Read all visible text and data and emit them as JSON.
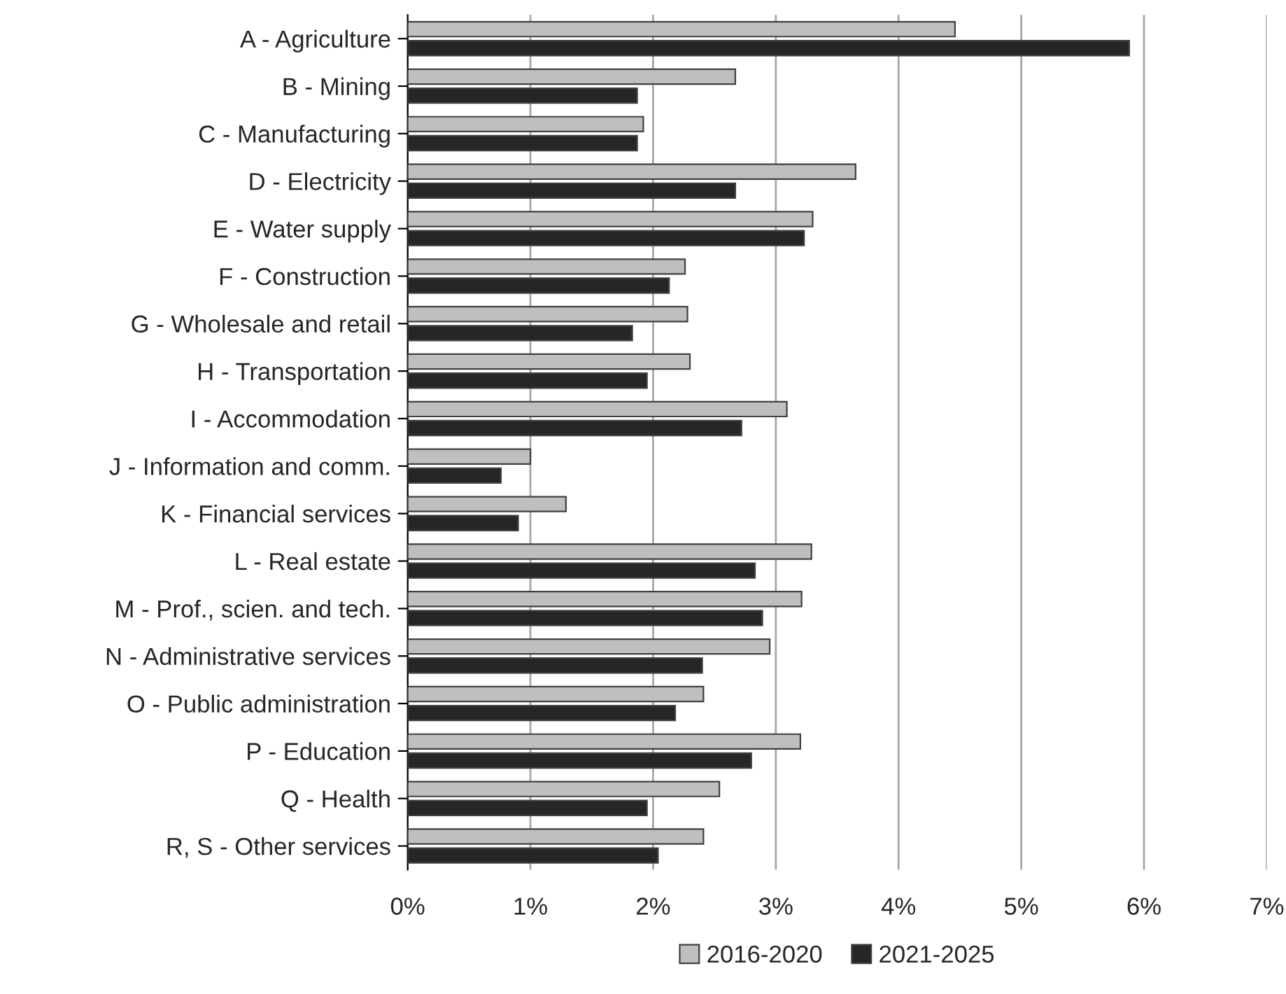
{
  "chart_data": {
    "type": "bar",
    "orientation": "horizontal",
    "categories": [
      "A - Agriculture",
      "B - Mining",
      "C - Manufacturing",
      "D - Electricity",
      "E - Water supply",
      "F - Construction",
      "G - Wholesale and retail",
      "H - Transportation",
      "I - Accommodation",
      "J - Information and comm.",
      "K - Financial services",
      "L - Real estate",
      "M - Prof., scien. and tech.",
      "N - Administrative services",
      "O - Public administration",
      "P - Education",
      "Q - Health",
      "R, S - Other services"
    ],
    "series": [
      {
        "name": "2016-2020",
        "color": "#bfbfbf",
        "values": [
          4.46,
          2.67,
          1.92,
          3.65,
          3.3,
          2.26,
          2.28,
          2.3,
          3.09,
          1.0,
          1.29,
          3.29,
          3.21,
          2.95,
          2.41,
          3.2,
          2.54,
          2.41
        ]
      },
      {
        "name": "2021-2025",
        "color": "#262626",
        "values": [
          5.88,
          1.87,
          1.87,
          2.67,
          3.23,
          2.13,
          1.83,
          1.95,
          2.72,
          0.76,
          0.9,
          2.83,
          2.89,
          2.4,
          2.18,
          2.8,
          1.95,
          2.04
        ]
      }
    ],
    "xlim": [
      0,
      7
    ],
    "xticks": [
      {
        "value": 0,
        "label": "0%"
      },
      {
        "value": 1,
        "label": "1%"
      },
      {
        "value": 2,
        "label": "2%"
      },
      {
        "value": 3,
        "label": "3%"
      },
      {
        "value": 4,
        "label": "4%"
      },
      {
        "value": 5,
        "label": "5%"
      },
      {
        "value": 6,
        "label": "6%"
      },
      {
        "value": 7,
        "label": "7%"
      }
    ],
    "grid": "x",
    "legend": "bottom"
  }
}
